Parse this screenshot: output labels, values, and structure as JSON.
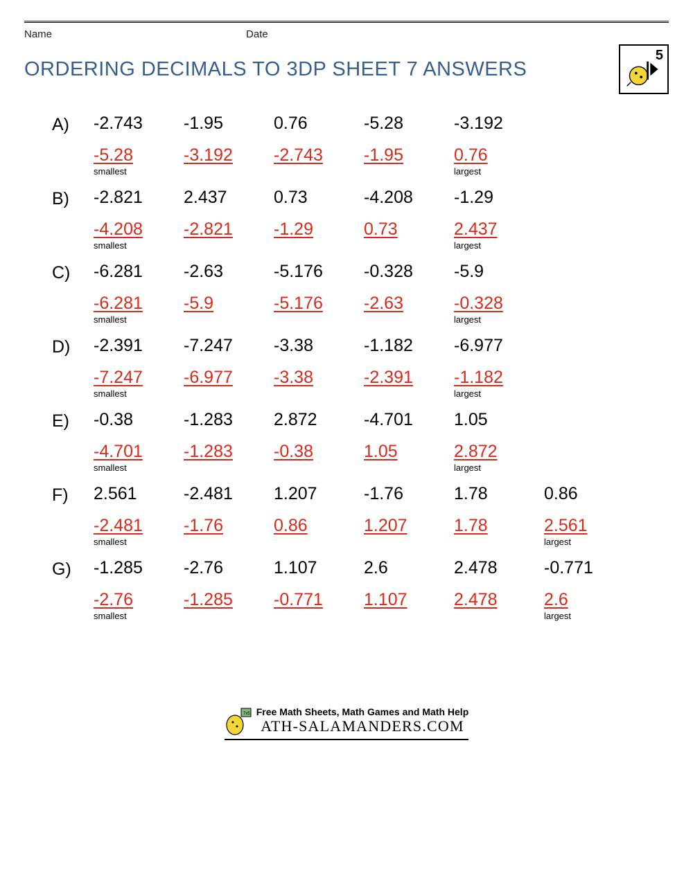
{
  "header": {
    "name_label": "Name",
    "date_label": "Date"
  },
  "title": "ORDERING DECIMALS TO 3DP SHEET 7 ANSWERS",
  "title_color": "#355e8f",
  "answer_color": "#d62b1a",
  "badge_number": "5",
  "labels": {
    "smallest": "smallest",
    "largest": "largest"
  },
  "problems": [
    {
      "letter": "A)",
      "values": [
        "-2.743",
        "-1.95",
        "0.76",
        "-5.28",
        "-3.192"
      ],
      "answers": [
        "-5.28",
        "-3.192",
        "-2.743",
        "-1.95",
        "0.76"
      ]
    },
    {
      "letter": "B)",
      "values": [
        "-2.821",
        "2.437",
        "0.73",
        "-4.208",
        "-1.29"
      ],
      "answers": [
        "-4.208",
        "-2.821",
        "-1.29",
        "0.73",
        "2.437"
      ]
    },
    {
      "letter": "C)",
      "values": [
        "-6.281",
        "-2.63",
        "-5.176",
        "-0.328",
        "-5.9"
      ],
      "answers": [
        "-6.281",
        "-5.9",
        "-5.176",
        "-2.63",
        "-0.328"
      ]
    },
    {
      "letter": "D)",
      "values": [
        "-2.391",
        "-7.247",
        "-3.38",
        "-1.182",
        "-6.977"
      ],
      "answers": [
        "-7.247",
        "-6.977",
        "-3.38",
        "-2.391",
        "-1.182"
      ]
    },
    {
      "letter": "E)",
      "values": [
        "-0.38",
        "-1.283",
        "2.872",
        "-4.701",
        "1.05"
      ],
      "answers": [
        "-4.701",
        "-1.283",
        "-0.38",
        "1.05",
        "2.872"
      ]
    },
    {
      "letter": "F)",
      "values": [
        "2.561",
        "-2.481",
        "1.207",
        "-1.76",
        "1.78",
        "0.86"
      ],
      "answers": [
        "-2.481",
        "-1.76",
        "0.86",
        "1.207",
        "1.78",
        "2.561"
      ]
    },
    {
      "letter": "G)",
      "values": [
        "-1.285",
        "-2.76",
        "1.107",
        "2.6",
        "2.478",
        "-0.771"
      ],
      "answers": [
        "-2.76",
        "-1.285",
        "-0.771",
        "1.107",
        "2.478",
        "2.6"
      ]
    }
  ],
  "footer": {
    "line1": "Free Math Sheets, Math Games and Math Help",
    "line2": "ATH-SALAMANDERS.COM"
  }
}
